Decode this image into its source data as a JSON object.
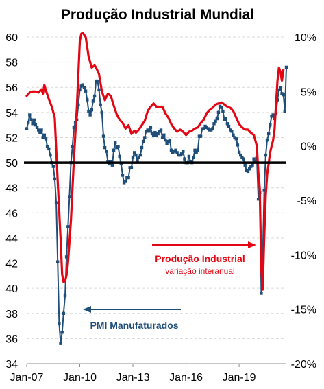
{
  "chart_data": {
    "type": "line",
    "title": "Produção Industrial Mundial",
    "x_ticks": [
      "Jan-07",
      "Jan-10",
      "Jan-13",
      "Jan-16",
      "Jan-19"
    ],
    "x_range": [
      "2007-01",
      "2021-09"
    ],
    "y_left": {
      "ticks": [
        "34",
        "36",
        "38",
        "40",
        "42",
        "44",
        "46",
        "48",
        "50",
        "52",
        "54",
        "56",
        "58",
        "60"
      ],
      "range": [
        34,
        60
      ]
    },
    "y_right": {
      "ticks": [
        "-20%",
        "-15%",
        "-10%",
        "-5%",
        "0%",
        "5%",
        "10%"
      ],
      "range": [
        -20,
        10
      ]
    },
    "reference_line": {
      "axis": "left",
      "value": 50,
      "color": "#000000"
    },
    "grid": {
      "horizontal": true,
      "style": "dashed",
      "color": "#d9d9d9"
    },
    "series": [
      {
        "name": "PMI Manufaturados",
        "axis": "left",
        "color": "#1f4e79",
        "marker": "square",
        "points": [
          [
            "2007-01",
            52.7
          ],
          [
            "2007-02",
            53.2
          ],
          [
            "2007-03",
            53.8
          ],
          [
            "2007-04",
            53.4
          ],
          [
            "2007-05",
            53.1
          ],
          [
            "2007-06",
            53.4
          ],
          [
            "2007-07",
            53.0
          ],
          [
            "2007-08",
            52.8
          ],
          [
            "2007-09",
            52.6
          ],
          [
            "2007-10",
            52.4
          ],
          [
            "2007-11",
            52.6
          ],
          [
            "2007-12",
            52.0
          ],
          [
            "2008-01",
            52.2
          ],
          [
            "2008-02",
            51.9
          ],
          [
            "2008-03",
            51.3
          ],
          [
            "2008-04",
            51.1
          ],
          [
            "2008-05",
            50.6
          ],
          [
            "2008-06",
            50.0
          ],
          [
            "2008-07",
            49.7
          ],
          [
            "2008-08",
            48.7
          ],
          [
            "2008-09",
            46.8
          ],
          [
            "2008-10",
            42.1
          ],
          [
            "2008-11",
            37.2
          ],
          [
            "2008-12",
            35.6
          ],
          [
            "2009-01",
            36.5
          ],
          [
            "2009-02",
            38.0
          ],
          [
            "2009-03",
            39.4
          ],
          [
            "2009-04",
            42.5
          ],
          [
            "2009-05",
            44.9
          ],
          [
            "2009-06",
            47.3
          ],
          [
            "2009-07",
            50.0
          ],
          [
            "2009-08",
            51.3
          ],
          [
            "2009-09",
            52.8
          ],
          [
            "2009-10",
            53.2
          ],
          [
            "2009-11",
            53.4
          ],
          [
            "2009-12",
            54.6
          ],
          [
            "2010-01",
            55.8
          ],
          [
            "2010-02",
            56.1
          ],
          [
            "2010-03",
            56.2
          ],
          [
            "2010-04",
            56.0
          ],
          [
            "2010-05",
            55.7
          ],
          [
            "2010-06",
            55.0
          ],
          [
            "2010-07",
            54.1
          ],
          [
            "2010-08",
            53.8
          ],
          [
            "2010-09",
            54.2
          ],
          [
            "2010-10",
            54.9
          ],
          [
            "2010-11",
            55.3
          ],
          [
            "2010-12",
            56.5
          ],
          [
            "2011-01",
            56.5
          ],
          [
            "2011-02",
            55.8
          ],
          [
            "2011-03",
            54.6
          ],
          [
            "2011-04",
            54.0
          ],
          [
            "2011-05",
            52.1
          ],
          [
            "2011-06",
            51.2
          ],
          [
            "2011-07",
            50.9
          ],
          [
            "2011-08",
            50.1
          ],
          [
            "2011-09",
            49.9
          ],
          [
            "2011-10",
            50.1
          ],
          [
            "2011-11",
            49.8
          ],
          [
            "2011-12",
            51.0
          ],
          [
            "2012-01",
            51.6
          ],
          [
            "2012-02",
            51.2
          ],
          [
            "2012-03",
            51.3
          ],
          [
            "2012-04",
            50.5
          ],
          [
            "2012-05",
            49.9
          ],
          [
            "2012-06",
            49.0
          ],
          [
            "2012-07",
            48.4
          ],
          [
            "2012-08",
            48.5
          ],
          [
            "2012-09",
            48.8
          ],
          [
            "2012-10",
            48.8
          ],
          [
            "2012-11",
            49.6
          ],
          [
            "2012-12",
            49.6
          ],
          [
            "2013-01",
            50.4
          ],
          [
            "2013-02",
            50.8
          ],
          [
            "2013-03",
            50.6
          ],
          [
            "2013-04",
            50.2
          ],
          [
            "2013-05",
            50.4
          ],
          [
            "2013-06",
            50.6
          ],
          [
            "2013-07",
            51.2
          ],
          [
            "2013-08",
            51.7
          ],
          [
            "2013-09",
            52.0
          ],
          [
            "2013-10",
            52.5
          ],
          [
            "2013-11",
            52.6
          ],
          [
            "2013-12",
            52.5
          ],
          [
            "2014-01",
            52.8
          ],
          [
            "2014-02",
            52.3
          ],
          [
            "2014-03",
            52.2
          ],
          [
            "2014-04",
            52.4
          ],
          [
            "2014-05",
            52.2
          ],
          [
            "2014-06",
            52.3
          ],
          [
            "2014-07",
            52.5
          ],
          [
            "2014-08",
            52.6
          ],
          [
            "2014-09",
            52.0
          ],
          [
            "2014-10",
            52.2
          ],
          [
            "2014-11",
            51.8
          ],
          [
            "2014-12",
            51.5
          ],
          [
            "2015-01",
            51.7
          ],
          [
            "2015-02",
            51.8
          ],
          [
            "2015-03",
            51.0
          ],
          [
            "2015-04",
            50.8
          ],
          [
            "2015-05",
            50.9
          ],
          [
            "2015-06",
            51.0
          ],
          [
            "2015-07",
            50.8
          ],
          [
            "2015-08",
            50.6
          ],
          [
            "2015-09",
            50.6
          ],
          [
            "2015-10",
            50.7
          ],
          [
            "2015-11",
            50.9
          ],
          [
            "2015-12",
            50.3
          ],
          [
            "2016-01",
            50.0
          ],
          [
            "2016-02",
            50.0
          ],
          [
            "2016-03",
            50.5
          ],
          [
            "2016-04",
            50.1
          ],
          [
            "2016-05",
            50.0
          ],
          [
            "2016-06",
            50.4
          ],
          [
            "2016-07",
            51.0
          ],
          [
            "2016-08",
            50.8
          ],
          [
            "2016-09",
            51.0
          ],
          [
            "2016-10",
            52.1
          ],
          [
            "2016-11",
            52.1
          ],
          [
            "2016-12",
            52.7
          ],
          [
            "2017-01",
            52.7
          ],
          [
            "2017-02",
            52.9
          ],
          [
            "2017-03",
            52.8
          ],
          [
            "2017-04",
            52.7
          ],
          [
            "2017-05",
            52.6
          ],
          [
            "2017-06",
            52.6
          ],
          [
            "2017-07",
            52.7
          ],
          [
            "2017-08",
            53.1
          ],
          [
            "2017-09",
            53.3
          ],
          [
            "2017-10",
            53.5
          ],
          [
            "2017-11",
            54.0
          ],
          [
            "2017-12",
            54.5
          ],
          [
            "2018-01",
            54.4
          ],
          [
            "2018-02",
            54.1
          ],
          [
            "2018-03",
            53.4
          ],
          [
            "2018-04",
            53.5
          ],
          [
            "2018-05",
            53.1
          ],
          [
            "2018-06",
            52.9
          ],
          [
            "2018-07",
            52.6
          ],
          [
            "2018-08",
            52.5
          ],
          [
            "2018-09",
            52.2
          ],
          [
            "2018-10",
            52.0
          ],
          [
            "2018-11",
            51.9
          ],
          [
            "2018-12",
            51.4
          ],
          [
            "2019-01",
            50.8
          ],
          [
            "2019-02",
            50.6
          ],
          [
            "2019-03",
            50.4
          ],
          [
            "2019-04",
            50.3
          ],
          [
            "2019-05",
            49.8
          ],
          [
            "2019-06",
            49.4
          ],
          [
            "2019-07",
            49.3
          ],
          [
            "2019-08",
            49.5
          ],
          [
            "2019-09",
            49.7
          ],
          [
            "2019-10",
            49.8
          ],
          [
            "2019-11",
            50.3
          ],
          [
            "2019-12",
            50.1
          ],
          [
            "2020-01",
            50.4
          ],
          [
            "2020-02",
            47.1
          ],
          [
            "2020-03",
            47.6
          ],
          [
            "2020-04",
            39.6
          ],
          [
            "2020-05",
            42.4
          ],
          [
            "2020-06",
            47.8
          ],
          [
            "2020-07",
            50.6
          ],
          [
            "2020-08",
            51.8
          ],
          [
            "2020-09",
            52.3
          ],
          [
            "2020-10",
            53.0
          ],
          [
            "2020-11",
            53.7
          ],
          [
            "2020-12",
            53.8
          ],
          [
            "2021-01",
            53.5
          ],
          [
            "2021-02",
            53.9
          ],
          [
            "2021-03",
            55.0
          ],
          [
            "2021-04",
            55.8
          ],
          [
            "2021-05",
            56.0
          ],
          [
            "2021-06",
            55.5
          ],
          [
            "2021-07",
            55.4
          ],
          [
            "2021-08",
            54.1
          ],
          [
            "2021-09",
            57.6
          ]
        ]
      },
      {
        "name": "Produção Industrial",
        "subtitle": "variação interanual",
        "axis": "right",
        "color": "#e30613",
        "points": [
          [
            "2007-01",
            4.6
          ],
          [
            "2007-03",
            4.9
          ],
          [
            "2007-05",
            5.0
          ],
          [
            "2007-07",
            5.0
          ],
          [
            "2007-09",
            4.9
          ],
          [
            "2007-11",
            5.2
          ],
          [
            "2007-12",
            4.8
          ],
          [
            "2008-01",
            5.6
          ],
          [
            "2008-02",
            5.1
          ],
          [
            "2008-04",
            4.3
          ],
          [
            "2008-06",
            3.6
          ],
          [
            "2008-08",
            2.6
          ],
          [
            "2008-10",
            -3.2
          ],
          [
            "2008-12",
            -8.6
          ],
          [
            "2009-01",
            -11.8
          ],
          [
            "2009-02",
            -12.5
          ],
          [
            "2009-03",
            -12.4
          ],
          [
            "2009-04",
            -11.9
          ],
          [
            "2009-05",
            -10.7
          ],
          [
            "2009-07",
            -6.8
          ],
          [
            "2009-09",
            -1.2
          ],
          [
            "2009-11",
            3.5
          ],
          [
            "2009-12",
            6.6
          ],
          [
            "2010-01",
            9.6
          ],
          [
            "2010-02",
            10.3
          ],
          [
            "2010-03",
            10.4
          ],
          [
            "2010-05",
            10.0
          ],
          [
            "2010-07",
            8.2
          ],
          [
            "2010-09",
            7.2
          ],
          [
            "2010-11",
            7.4
          ],
          [
            "2010-12",
            7.2
          ],
          [
            "2011-02",
            6.6
          ],
          [
            "2011-04",
            5.0
          ],
          [
            "2011-06",
            4.2
          ],
          [
            "2011-08",
            4.8
          ],
          [
            "2011-10",
            4.6
          ],
          [
            "2011-12",
            3.7
          ],
          [
            "2012-02",
            2.9
          ],
          [
            "2012-04",
            2.4
          ],
          [
            "2012-06",
            2.1
          ],
          [
            "2012-08",
            1.6
          ],
          [
            "2012-10",
            1.9
          ],
          [
            "2012-12",
            1.1
          ],
          [
            "2013-02",
            1.4
          ],
          [
            "2013-03",
            1.2
          ],
          [
            "2013-05",
            1.5
          ],
          [
            "2013-07",
            1.9
          ],
          [
            "2013-09",
            2.3
          ],
          [
            "2013-11",
            3.2
          ],
          [
            "2014-01",
            3.6
          ],
          [
            "2014-03",
            3.9
          ],
          [
            "2014-05",
            3.6
          ],
          [
            "2014-07",
            3.6
          ],
          [
            "2014-09",
            3.6
          ],
          [
            "2014-11",
            3.0
          ],
          [
            "2015-01",
            2.6
          ],
          [
            "2015-03",
            2.0
          ],
          [
            "2015-05",
            1.6
          ],
          [
            "2015-07",
            1.3
          ],
          [
            "2015-09",
            1.5
          ],
          [
            "2015-11",
            1.3
          ],
          [
            "2016-01",
            1.0
          ],
          [
            "2016-03",
            1.3
          ],
          [
            "2016-05",
            1.4
          ],
          [
            "2016-07",
            1.6
          ],
          [
            "2016-09",
            1.7
          ],
          [
            "2016-11",
            2.1
          ],
          [
            "2017-01",
            2.4
          ],
          [
            "2017-03",
            3.0
          ],
          [
            "2017-05",
            3.3
          ],
          [
            "2017-07",
            3.5
          ],
          [
            "2017-09",
            3.8
          ],
          [
            "2017-11",
            3.9
          ],
          [
            "2018-01",
            4.0
          ],
          [
            "2018-03",
            3.8
          ],
          [
            "2018-05",
            3.6
          ],
          [
            "2018-07",
            3.5
          ],
          [
            "2018-09",
            3.2
          ],
          [
            "2018-11",
            2.6
          ],
          [
            "2019-01",
            2.0
          ],
          [
            "2019-03",
            1.7
          ],
          [
            "2019-05",
            1.5
          ],
          [
            "2019-07",
            1.5
          ],
          [
            "2019-09",
            1.2
          ],
          [
            "2019-11",
            1.0
          ],
          [
            "2020-01",
            0.0
          ],
          [
            "2020-02",
            -2.4
          ],
          [
            "2020-03",
            -3.9
          ],
          [
            "2020-04",
            -11.2
          ],
          [
            "2020-05",
            -13.2
          ],
          [
            "2020-06",
            -8.4
          ],
          [
            "2020-07",
            -4.6
          ],
          [
            "2020-08",
            -2.6
          ],
          [
            "2020-09",
            -1.6
          ],
          [
            "2020-10",
            -0.6
          ],
          [
            "2020-11",
            0.0
          ],
          [
            "2020-12",
            0.5
          ],
          [
            "2021-01",
            1.5
          ],
          [
            "2021-02",
            3.8
          ],
          [
            "2021-03",
            6.0
          ],
          [
            "2021-04",
            7.2
          ],
          [
            "2021-05",
            6.8
          ],
          [
            "2021-06",
            6.0
          ],
          [
            "2021-07",
            7.0
          ]
        ]
      }
    ],
    "annotations": [
      {
        "id": "ip",
        "text": "Produção Industrial",
        "subtext": "variação interanual",
        "color": "#e30613",
        "arrow": "right"
      },
      {
        "id": "pmi",
        "text": "PMI Manufaturados",
        "color": "#1f4e79",
        "arrow": "left"
      }
    ]
  }
}
